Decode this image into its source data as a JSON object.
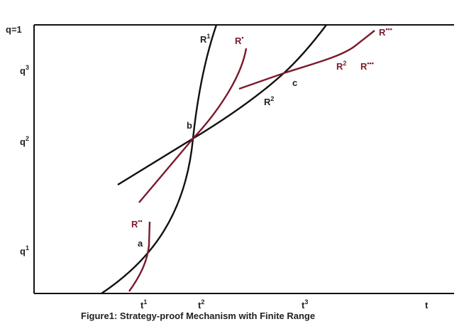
{
  "y_axis": {
    "top": "q=1",
    "ticks": [
      {
        "base": "q",
        "sup": "3"
      },
      {
        "base": "q",
        "sup": "2"
      },
      {
        "base": "q",
        "sup": "1"
      }
    ]
  },
  "x_axis": {
    "ticks": [
      {
        "base": "t",
        "sup": "1"
      },
      {
        "base": "t",
        "sup": "2"
      },
      {
        "base": "t",
        "sup": "3"
      }
    ],
    "label": "t"
  },
  "curve_labels": [
    {
      "base": "R",
      "sup": "1"
    },
    {
      "base": "R",
      "sup": "•"
    },
    {
      "base": "R",
      "sup": "•••"
    },
    {
      "base": "R",
      "sup": "2"
    },
    {
      "base": "R",
      "sup": "•••"
    },
    {
      "base": "R",
      "sup": "2"
    },
    {
      "base": "R",
      "sup": "••"
    }
  ],
  "points": [
    "a",
    "b",
    "c"
  ],
  "caption": "Figure1: Strategy-proof Mechanism with Finite Range"
}
